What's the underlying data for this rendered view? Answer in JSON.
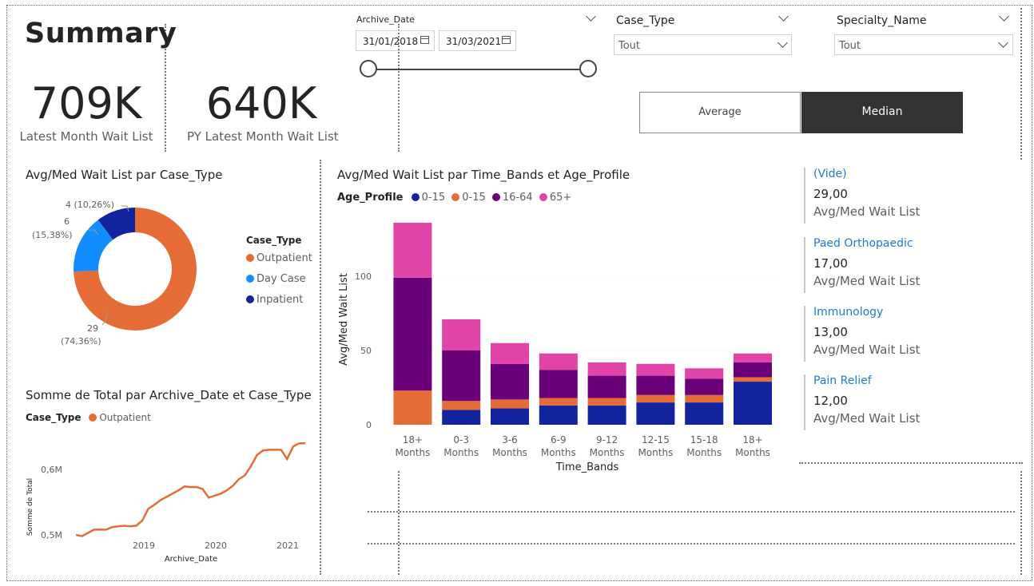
{
  "page_title": "Summary",
  "kpis": [
    {
      "value": "709K",
      "label": "Latest Month Wait List"
    },
    {
      "value": "640K",
      "label": "PY Latest Month Wait List"
    }
  ],
  "slicers": {
    "archive_date": {
      "label": "Archive_Date",
      "start": "31/01/2018",
      "end": "31/03/2021"
    },
    "case_type": {
      "label": "Case_Type",
      "value": "Tout"
    },
    "specialty_name": {
      "label": "Specialty_Name",
      "value": "Tout"
    }
  },
  "toggle": {
    "average_label": "Average",
    "median_label": "Median",
    "selected": "Median"
  },
  "colors": {
    "outpatient": "#E66C37",
    "day_case": "#118DFF",
    "inpatient": "#12239E",
    "age_0_15_blue": "#12239E",
    "age_0_15_orange": "#E66C37",
    "age_16_64": "#6B007B",
    "age_65": "#E044A7",
    "card_link": "#1e7ad3"
  },
  "donut": {
    "title": "Avg/Med Wait List par Case_Type",
    "legend_title": "Case_Type",
    "labels": [
      {
        "line1": "4 (10,26%)",
        "line2": ""
      },
      {
        "line1": "6",
        "line2": "(15,38%)"
      },
      {
        "line1": "29",
        "line2": "(74,36%)"
      }
    ]
  },
  "line_chart": {
    "title": "Somme de Total par Archive_Date et Case_Type",
    "legend_title": "Case_Type",
    "legend_item": "Outpatient",
    "ylabel": "Somme de Total",
    "xlabel": "Archive_Date",
    "y_ticks": [
      "0,6M",
      "0,5M"
    ],
    "x_ticks": [
      "2019",
      "2020",
      "2021"
    ]
  },
  "bar_chart": {
    "title": "Avg/Med Wait List par Time_Bands et Age_Profile",
    "legend_title": "Age_Profile",
    "legend_items": [
      "0-15",
      "0-15",
      "16-64",
      "65+"
    ],
    "ylabel": "Avg/Med Wait List",
    "xlabel": "Time_Bands",
    "y_ticks": [
      "100",
      "50",
      "0"
    ],
    "x_labels": [
      {
        "l1": "18+",
        "l2": "Months"
      },
      {
        "l1": "0-3",
        "l2": "Months"
      },
      {
        "l1": "3-6",
        "l2": "Months"
      },
      {
        "l1": "6-9",
        "l2": "Months"
      },
      {
        "l1": "9-12",
        "l2": "Months"
      },
      {
        "l1": "12-15",
        "l2": "Months"
      },
      {
        "l1": "15-18",
        "l2": "Months"
      },
      {
        "l1": "18+",
        "l2": "Months"
      }
    ]
  },
  "cards": [
    {
      "category": "(Vide)",
      "value": "29,00",
      "label": "Avg/Med Wait List"
    },
    {
      "category": "Paed Orthopaedic",
      "value": "17,00",
      "label": "Avg/Med Wait List"
    },
    {
      "category": "Immunology",
      "value": "13,00",
      "label": "Avg/Med Wait List"
    },
    {
      "category": "Pain Relief",
      "value": "12,00",
      "label": "Avg/Med Wait List"
    }
  ],
  "chart_data": [
    {
      "type": "pie",
      "title": "Avg/Med Wait List par Case_Type",
      "categories": [
        "Outpatient",
        "Day Case",
        "Inpatient"
      ],
      "values": [
        29,
        6,
        4
      ],
      "percent_labels": [
        "74,36%",
        "15,38%",
        "10,26%"
      ],
      "legend": "right"
    },
    {
      "type": "line",
      "title": "Somme de Total par Archive_Date et Case_Type",
      "xlabel": "Archive_Date",
      "ylabel": "Somme de Total",
      "series": [
        {
          "name": "Outpatient",
          "x": [
            "2018-01",
            "2018-02",
            "2018-03",
            "2018-04",
            "2018-05",
            "2018-06",
            "2018-07",
            "2018-08",
            "2018-09",
            "2018-10",
            "2018-11",
            "2018-12",
            "2019-01",
            "2019-02",
            "2019-03",
            "2019-04",
            "2019-05",
            "2019-06",
            "2019-07",
            "2019-08",
            "2019-09",
            "2019-10",
            "2019-11",
            "2019-12",
            "2020-01",
            "2020-02",
            "2020-03",
            "2020-04",
            "2020-05",
            "2020-06",
            "2020-07",
            "2020-08",
            "2020-09",
            "2020-10",
            "2020-11",
            "2020-12",
            "2021-01",
            "2021-02",
            "2021-03"
          ],
          "values": [
            0.5,
            0.498,
            0.503,
            0.508,
            0.508,
            0.508,
            0.512,
            0.513,
            0.514,
            0.513,
            0.514,
            0.522,
            0.54,
            0.546,
            0.553,
            0.558,
            0.563,
            0.568,
            0.574,
            0.573,
            0.573,
            0.57,
            0.557,
            0.56,
            0.563,
            0.568,
            0.575,
            0.585,
            0.591,
            0.605,
            0.622,
            0.629,
            0.63,
            0.63,
            0.63,
            0.616,
            0.635,
            0.64,
            0.64
          ]
        }
      ],
      "y_ticks": [
        0.5,
        0.6
      ],
      "ylim": [
        0.49,
        0.65
      ],
      "grid": false
    },
    {
      "type": "bar",
      "stacked": true,
      "title": "Avg/Med Wait List par Time_Bands et Age_Profile",
      "xlabel": "Time_Bands",
      "ylabel": "Avg/Med Wait List",
      "categories": [
        "18+ Months",
        "0-3 Months",
        "3-6 Months",
        "6-9 Months",
        "9-12 Months",
        "12-15 Months",
        "15-18 Months",
        "18+ Months"
      ],
      "series": [
        {
          "name": "0-15",
          "color": "#12239E",
          "values": [
            0,
            10,
            11,
            13,
            13,
            15,
            15,
            29
          ]
        },
        {
          "name": "0-15",
          "color": "#E66C37",
          "values": [
            23,
            6,
            6,
            5,
            5,
            5,
            5,
            3
          ]
        },
        {
          "name": "16-64",
          "color": "#6B007B",
          "values": [
            76,
            34,
            24,
            19,
            15,
            13,
            11,
            10
          ]
        },
        {
          "name": "65+",
          "color": "#E044A7",
          "values": [
            37,
            21,
            14,
            11,
            9,
            8,
            7,
            6
          ]
        }
      ],
      "ylim": [
        0,
        137
      ],
      "legend": "top-left"
    }
  ]
}
